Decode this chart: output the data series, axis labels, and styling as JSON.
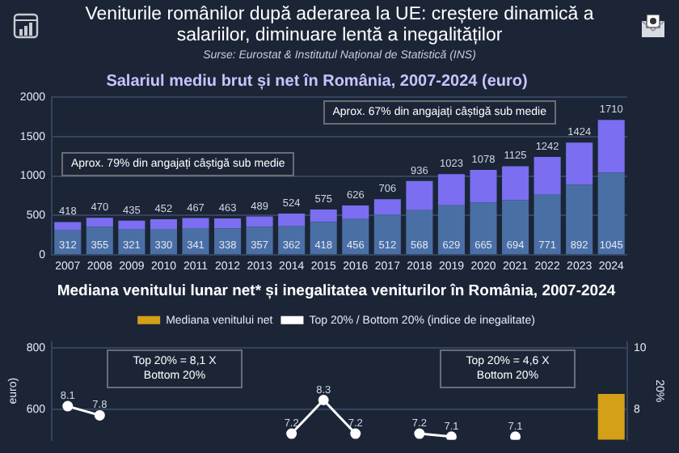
{
  "chart_data": [
    {
      "type": "bar",
      "title": "Veniturile românilor după aderarea la UE: creștere dinamică a salariilor, diminuare lentă a inegalităților",
      "subtitle": "Salariul mediu brut și net în România, 2007-2024 (euro)",
      "annotations": [
        "Surse: Eurostat & Institutul Național de Statistică (INS)",
        "Aprox. 79% din angajați câștigă sub medie",
        "Aprox. 67% din angajați câștigă sub medie"
      ],
      "categories": [
        "2007",
        "2008",
        "2009",
        "2010",
        "2011",
        "2012",
        "2013",
        "2014",
        "2015",
        "2016",
        "2017",
        "2018",
        "2019",
        "2020",
        "2021",
        "2022",
        "2023",
        "2024"
      ],
      "stacked": true,
      "series": [
        {
          "color": "#4a6fa5",
          "values": [
            312,
            355,
            321,
            330,
            341,
            338,
            357,
            362,
            418,
            456,
            512,
            568,
            629,
            665,
            694,
            771,
            892,
            1045
          ],
          "value_labels": [
            "312",
            "355",
            "321",
            "330",
            "341",
            "338",
            "357",
            "362",
            "418",
            "456",
            "512",
            "568",
            "629",
            "665",
            "694",
            "771",
            "892",
            "1045"
          ]
        },
        {
          "color": "#7b6ef0",
          "values": [
            106,
            115,
            114,
            122,
            126,
            125,
            132,
            162,
            157,
            170,
            194,
            368,
            394,
            413,
            431,
            471,
            532,
            665
          ]
        }
      ],
      "totals": [
        "418",
        "470",
        "435",
        "452",
        "467",
        "463",
        "489",
        "524",
        "575",
        "626",
        "706",
        "936",
        "1023",
        "1078",
        "1125",
        "1242",
        "1424",
        "1710"
      ],
      "ylim": [
        0,
        2000
      ],
      "yticks": [
        0,
        500,
        1000,
        1500,
        2000
      ],
      "grid": "y",
      "legend": false
    },
    {
      "type": "bar",
      "title": "Mediana venitului lunar net* și inegalitatea veniturilor în România, 2007-2024",
      "ylabel": "euro)",
      "y2label": "20%",
      "annotations": [
        "Top 20% = 8,1 X Bottom 20%",
        "Top 20% = 4,6 X Bottom 20%"
      ],
      "categories": [
        null,
        null,
        null,
        null,
        null,
        null,
        null,
        null,
        null,
        null,
        null,
        null,
        null,
        null,
        null,
        null,
        null,
        null
      ],
      "series": [
        {
          "name": "Mediana venitului net",
          "color": "#d4a017",
          "values": [
            null,
            null,
            null,
            null,
            null,
            null,
            null,
            null,
            null,
            null,
            null,
            null,
            null,
            null,
            null,
            null,
            null,
            650
          ]
        },
        {
          "name": "Top 20% / Bottom 20% (indice de inegalitate)",
          "type": "line",
          "axis": "y2",
          "color": "#ffffff",
          "values": [
            8.1,
            7.8,
            null,
            null,
            null,
            null,
            null,
            7.2,
            8.3,
            7.2,
            null,
            7.2,
            7.1,
            null,
            7.1,
            null,
            null,
            null
          ],
          "value_labels": [
            "8.1",
            "7.8",
            null,
            null,
            null,
            null,
            null,
            "7.2",
            "8.3",
            "7.2",
            null,
            "7.2",
            "7.1",
            null,
            "7.1",
            null,
            null,
            null
          ]
        }
      ],
      "ylim": [
        500,
        820
      ],
      "yticks": [
        600,
        800
      ],
      "y2lim": [
        7,
        10.2
      ],
      "y2ticks": [
        8,
        10
      ],
      "grid": "y",
      "legend": "top",
      "marker": "circle"
    }
  ]
}
